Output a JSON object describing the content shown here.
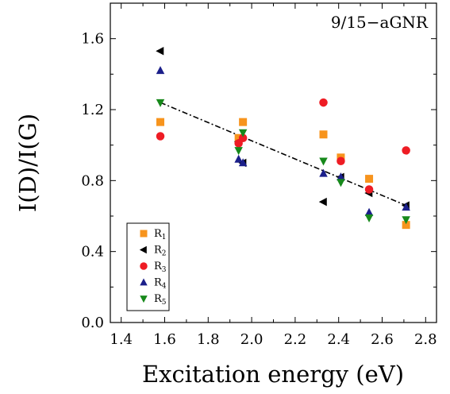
{
  "chart_data": {
    "type": "scatter",
    "title": "",
    "annotation": "9/15−aGNR",
    "xlabel": "Excitation energy (eV)",
    "ylabel": "I(D)/I(G)",
    "xlim": [
      1.35,
      2.85
    ],
    "ylim": [
      0.0,
      1.8
    ],
    "xticks": [
      1.4,
      1.6,
      1.8,
      2.0,
      2.2,
      2.4,
      2.6,
      2.8
    ],
    "xtick_labels": [
      "1.4",
      "1.6",
      "1.8",
      "2.0",
      "2.2",
      "2.4",
      "2.6",
      "2.8"
    ],
    "yticks": [
      0.0,
      0.4,
      0.8,
      1.2,
      1.6
    ],
    "ytick_labels": [
      "0.0",
      "0.4",
      "0.8",
      "1.2",
      "1.6"
    ],
    "legend_position": "bottom-left",
    "grid": false,
    "series": [
      {
        "name": "R1",
        "sub": "1",
        "marker": "square",
        "color": "#f7941d",
        "x": [
          1.58,
          1.94,
          1.96,
          2.33,
          2.41,
          2.54,
          2.71
        ],
        "y": [
          1.13,
          1.04,
          1.13,
          1.06,
          0.93,
          0.81,
          0.55
        ]
      },
      {
        "name": "R2",
        "sub": "2",
        "marker": "triangle-left",
        "color": "#000000",
        "x": [
          1.58,
          1.94,
          1.96,
          2.33,
          2.41,
          2.54,
          2.71
        ],
        "y": [
          1.53,
          1.02,
          0.9,
          0.68,
          0.82,
          0.73,
          0.66
        ]
      },
      {
        "name": "R3",
        "sub": "3",
        "marker": "circle",
        "color": "#ee1c24",
        "x": [
          1.58,
          1.94,
          1.96,
          2.33,
          2.41,
          2.54,
          2.71
        ],
        "y": [
          1.05,
          1.01,
          1.04,
          1.24,
          0.91,
          0.75,
          0.97
        ]
      },
      {
        "name": "R4",
        "sub": "4",
        "marker": "triangle-up",
        "color": "#1b1f8a",
        "x": [
          1.58,
          1.94,
          1.96,
          2.33,
          2.41,
          2.54,
          2.71
        ],
        "y": [
          1.42,
          0.92,
          0.9,
          0.84,
          0.82,
          0.62,
          0.65
        ]
      },
      {
        "name": "R5",
        "sub": "5",
        "marker": "triangle-down",
        "color": "#17891b",
        "x": [
          1.58,
          1.94,
          1.96,
          2.33,
          2.41,
          2.54,
          2.71
        ],
        "y": [
          1.24,
          0.97,
          1.07,
          0.91,
          0.79,
          0.59,
          0.58
        ]
      }
    ],
    "fit_line": {
      "x": [
        1.58,
        2.71
      ],
      "y": [
        1.24,
        0.66
      ],
      "color": "#000000",
      "style": "dash-dot"
    }
  }
}
